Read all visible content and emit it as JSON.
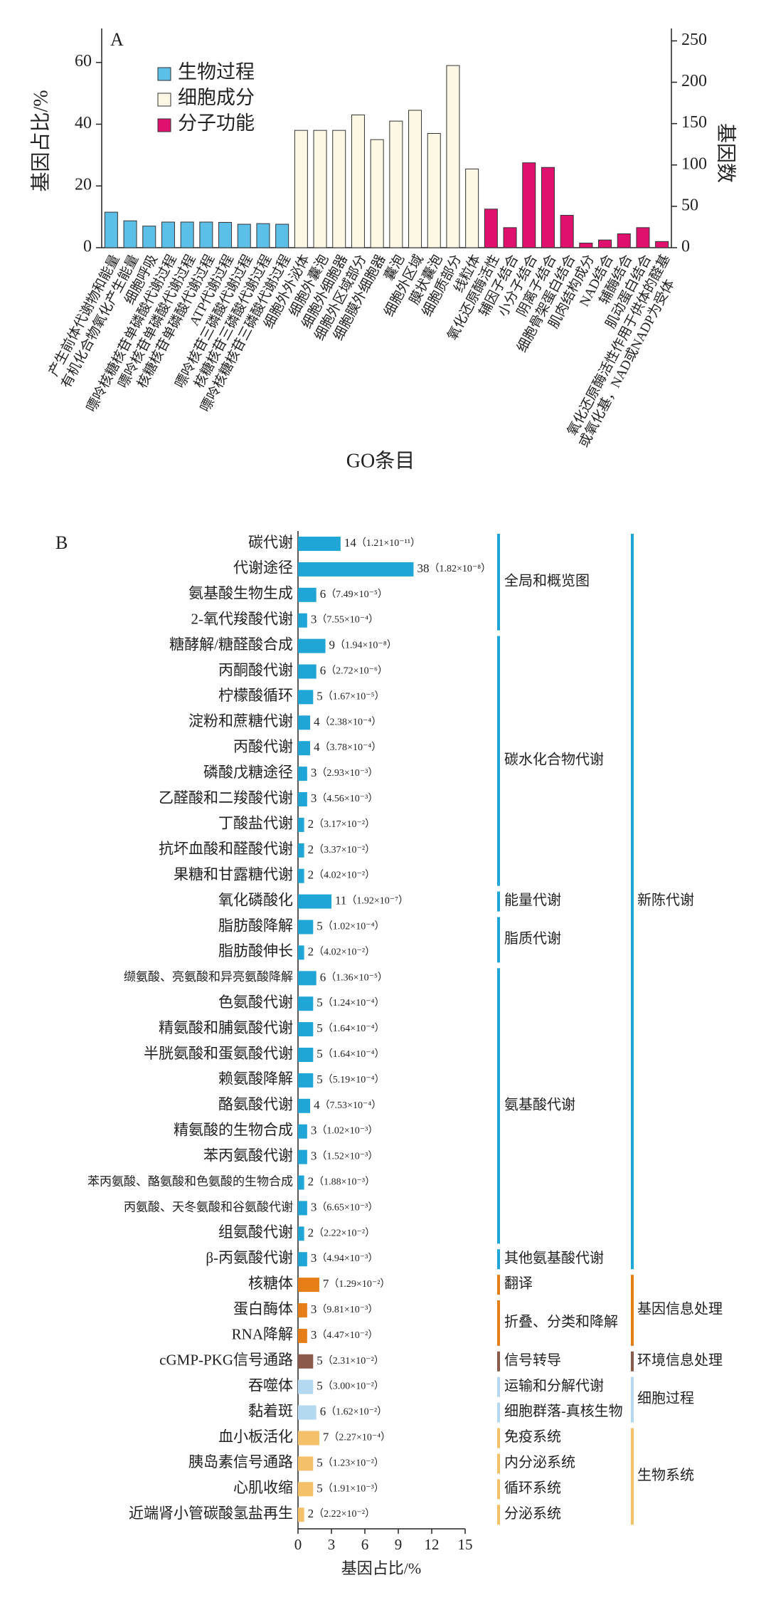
{
  "chart_data": [
    {
      "type": "bar",
      "panel": "A",
      "x_label": "GO条目",
      "y_label": "基因占比/%",
      "y2_label": "基因数",
      "ylim": [
        0,
        71
      ],
      "yticks": [
        0,
        20,
        40,
        60
      ],
      "y2lim": [
        0,
        265
      ],
      "y2ticks": [
        0,
        50,
        100,
        150,
        200,
        250
      ],
      "series": [
        {
          "name": "生物过程",
          "color": "#5bbfe8",
          "categories": [
            "产生前体代谢物和能量",
            "有机化合物氧化产生能量",
            "细胞呼吸",
            "嘌呤核糖核苷单磷酸代谢过程",
            "嘌呤核苷单磷酸代谢过程",
            "核糖核苷单磷酸代谢过程",
            "ATP代谢过程",
            "嘌呤核苷三磷酸代谢过程",
            "核糖核苷三磷酸代谢过程",
            "嘌呤核糖核苷三磷酸代谢过程"
          ],
          "values": [
            11.5,
            8.7,
            7,
            8.3,
            8.3,
            8.3,
            8.2,
            7.6,
            7.8,
            7.6
          ]
        },
        {
          "name": "细胞成分",
          "color": "#fdf8e4",
          "categories": [
            "细胞外外泌体",
            "细胞外囊泡",
            "细胞外细胞器",
            "细胞外区域部分",
            "细胞膜外细胞器",
            "囊泡",
            "细胞外区域",
            "膜状囊泡",
            "细胞质部分",
            "线粒体"
          ],
          "values": [
            38,
            38,
            38,
            43,
            35,
            41,
            44.5,
            37,
            59,
            25.5
          ]
        },
        {
          "name": "分子功能",
          "color": "#e0106e",
          "categories": [
            "氧化还原酶活性",
            "辅因子结合",
            "小分子结合",
            "阴离子结合",
            "细胞骨架蛋白结合",
            "肌肉结构成分",
            "NAD结合",
            "辅酶结合",
            "肌动蛋白结合",
            [
              "氧化还原酶活性作用于供体的醛基",
              "或氧化基，NAD或NADP为受体"
            ]
          ],
          "values": [
            12.5,
            6.5,
            27.5,
            26,
            10.5,
            1.5,
            2.5,
            4.5,
            6.5,
            2
          ]
        }
      ]
    },
    {
      "type": "hbar",
      "panel": "B",
      "x_label": "基因占比/%",
      "xlim": [
        0,
        15
      ],
      "xticks": [
        0,
        3,
        6,
        9,
        12,
        15
      ],
      "groups": [
        {
          "name": "新陈代谢",
          "color": "#1fa6d6",
          "subgroups": [
            {
              "name": "全局和概览图",
              "categories": [
                "碳代谢",
                "代谢途径",
                "氨基酸生物生成",
                "2-氧代羧酸代谢"
              ],
              "values": [
                3.82,
                10.37,
                1.64,
                0.82
              ],
              "counts": [
                14,
                38,
                6,
                3
              ],
              "p_labels": [
                "（1.21×10⁻¹¹）",
                "（1.82×10⁻⁸）",
                "（7.49×10⁻⁵）",
                "（7.55×10⁻⁴）"
              ]
            },
            {
              "name": "碳水化合物代谢",
              "categories": [
                "糖酵解/糖醛酸合成",
                "丙酮酸代谢",
                "柠檬酸循环",
                "淀粉和蔗糖代谢",
                "丙酸代谢",
                "磷酸戊糖途径",
                "乙醛酸和二羧酸代谢",
                "丁酸盐代谢",
                "抗坏血酸和醛酸代谢",
                "果糖和甘露糖代谢"
              ],
              "values": [
                2.46,
                1.64,
                1.36,
                1.09,
                1.09,
                0.82,
                0.82,
                0.55,
                0.55,
                0.55
              ],
              "counts": [
                9,
                6,
                5,
                4,
                4,
                3,
                3,
                2,
                2,
                2
              ],
              "p_labels": [
                "（1.94×10⁻⁸）",
                "（2.72×10⁻⁶）",
                "（1.67×10⁻⁵）",
                "（2.38×10⁻⁴）",
                "（3.78×10⁻⁴）",
                "（2.93×10⁻³）",
                "（4.56×10⁻³）",
                "（3.17×10⁻²）",
                "（3.37×10⁻²）",
                "（4.02×10⁻²）"
              ]
            },
            {
              "name": "能量代谢",
              "categories": [
                "氧化磷酸化"
              ],
              "values": [
                3.0
              ],
              "counts": [
                11
              ],
              "p_labels": [
                "（1.92×10⁻⁷）"
              ]
            },
            {
              "name": "脂质代谢",
              "categories": [
                "脂肪酸降解",
                "脂肪酸伸长"
              ],
              "values": [
                1.36,
                0.55
              ],
              "counts": [
                5,
                2
              ],
              "p_labels": [
                "（1.02×10⁻⁴）",
                "（4.02×10⁻²）"
              ]
            },
            {
              "name": "氨基酸代谢",
              "categories": [
                "缬氨酸、亮氨酸和异亮氨酸降解",
                "色氨酸代谢",
                "精氨酸和脯氨酸代谢",
                "半胱氨酸和蛋氨酸代谢",
                "赖氨酸降解",
                "酪氨酸代谢",
                "精氨酸的生物合成",
                "苯丙氨酸代谢",
                "苯丙氨酸、酪氨酸和色氨酸的生物合成",
                "丙氨酸、天冬氨酸和谷氨酸代谢",
                "组氨酸代谢"
              ],
              "values": [
                1.64,
                1.36,
                1.36,
                1.36,
                1.36,
                1.09,
                0.82,
                0.82,
                0.55,
                0.82,
                0.55
              ],
              "counts": [
                6,
                5,
                5,
                5,
                5,
                4,
                3,
                3,
                2,
                3,
                2
              ],
              "p_labels": [
                "（1.36×10⁻⁵）",
                "（1.24×10⁻⁴）",
                "（1.64×10⁻⁴）",
                "（1.64×10⁻⁴）",
                "（5.19×10⁻⁴）",
                "（7.53×10⁻⁴）",
                "（1.02×10⁻³）",
                "（1.52×10⁻³）",
                "（1.88×10⁻³）",
                "（6.65×10⁻³）",
                "（2.22×10⁻²）"
              ]
            },
            {
              "name": "其他氨基酸代谢",
              "categories": [
                "β-丙氨酸代谢"
              ],
              "values": [
                0.82
              ],
              "counts": [
                3
              ],
              "p_labels": [
                "（4.94×10⁻³）"
              ]
            }
          ]
        },
        {
          "name": "基因信息处理",
          "color": "#e57e17",
          "subgroups": [
            {
              "name": "翻译",
              "categories": [
                "核糖体"
              ],
              "values": [
                1.91
              ],
              "counts": [
                7
              ],
              "p_labels": [
                "（1.29×10⁻²）"
              ]
            },
            {
              "name": "折叠、分类和降解",
              "categories": [
                "蛋白酶体",
                "RNA降解"
              ],
              "values": [
                0.82,
                0.82
              ],
              "counts": [
                3,
                3
              ],
              "p_labels": [
                "（9.81×10⁻³）",
                "（4.47×10⁻²）"
              ]
            }
          ]
        },
        {
          "name": "环境信息处理",
          "color": "#8c5a4a",
          "subgroups": [
            {
              "name": "信号转导",
              "categories": [
                "cGMP-PKG信号通路"
              ],
              "values": [
                1.36
              ],
              "counts": [
                5
              ],
              "p_labels": [
                "（2.31×10⁻²）"
              ]
            }
          ]
        },
        {
          "name": "细胞过程",
          "color": "#b3d8f0",
          "subgroups": [
            {
              "name": "运输和分解代谢",
              "categories": [
                "吞噬体"
              ],
              "values": [
                1.36
              ],
              "counts": [
                5
              ],
              "p_labels": [
                "（3.00×10⁻²）"
              ]
            },
            {
              "name": "细胞群落-真核生物",
              "categories": [
                "黏着斑"
              ],
              "values": [
                1.64
              ],
              "counts": [
                6
              ],
              "p_labels": [
                "（1.62×10⁻²）"
              ]
            }
          ]
        },
        {
          "name": "生物系统",
          "color": "#f4c06a",
          "subgroups": [
            {
              "name": "免疫系统",
              "categories": [
                "血小板活化"
              ],
              "values": [
                1.91
              ],
              "counts": [
                7
              ],
              "p_labels": [
                "（2.27×10⁻⁴）"
              ]
            },
            {
              "name": "内分泌系统",
              "categories": [
                "胰岛素信号通路"
              ],
              "values": [
                1.36
              ],
              "counts": [
                5
              ],
              "p_labels": [
                "（1.23×10⁻²）"
              ]
            },
            {
              "name": "循环系统",
              "categories": [
                "心肌收缩"
              ],
              "values": [
                1.36
              ],
              "counts": [
                5
              ],
              "p_labels": [
                "（1.91×10⁻³）"
              ]
            },
            {
              "name": "分泌系统",
              "categories": [
                "近端肾小管碳酸氢盐再生"
              ],
              "values": [
                0.55
              ],
              "counts": [
                2
              ],
              "p_labels": [
                "（2.22×10⁻²）"
              ]
            }
          ]
        }
      ]
    }
  ]
}
